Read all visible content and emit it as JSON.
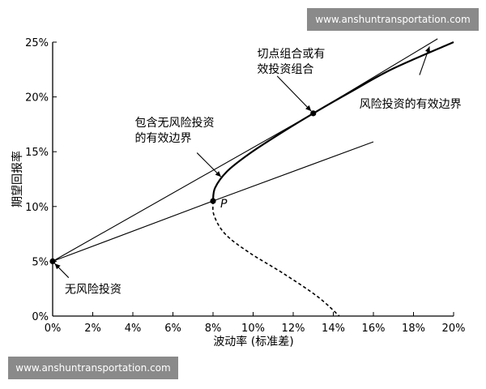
{
  "watermarks": {
    "top": "www.anshuntransportation.com",
    "bottom": "www.anshuntransportation.com"
  },
  "chart_data": {
    "type": "line",
    "xlabel": "波动率 (标准差)",
    "ylabel": "期望回报率",
    "xlim": [
      0,
      20
    ],
    "ylim": [
      0,
      25
    ],
    "x_ticks": [
      "0%",
      "2%",
      "4%",
      "6%",
      "8%",
      "10%",
      "12%",
      "14%",
      "16%",
      "18%",
      "20%"
    ],
    "y_ticks": [
      "0%",
      "5%",
      "10%",
      "15%",
      "20%",
      "25%"
    ],
    "grid": false,
    "series": [
      {
        "line": "tangent_line",
        "points": [
          [
            0,
            5
          ],
          [
            13,
            18.5
          ],
          [
            19.2,
            25.3
          ]
        ]
      },
      {
        "line": "line_through_P",
        "points": [
          [
            0,
            5
          ],
          [
            8,
            10.5
          ],
          [
            16,
            15.9
          ]
        ]
      },
      {
        "line": "efficient_frontier_solid",
        "points": [
          [
            8,
            10.5
          ],
          [
            8.1,
            11.7
          ],
          [
            8.7,
            13.2
          ],
          [
            9.8,
            14.8
          ],
          [
            11.3,
            16.6
          ],
          [
            13,
            18.5
          ],
          [
            15,
            20.6
          ],
          [
            17,
            22.6
          ],
          [
            20,
            25
          ]
        ]
      },
      {
        "line": "frontier_dashed",
        "points": [
          [
            8,
            10.5
          ],
          [
            8.05,
            9.2
          ],
          [
            8.6,
            7.5
          ],
          [
            9.8,
            5.8
          ],
          [
            11.5,
            3.9
          ],
          [
            13.2,
            1.8
          ],
          [
            14.3,
            0
          ]
        ]
      }
    ],
    "points": [
      {
        "x": 0,
        "y": 5
      },
      {
        "x": 8,
        "y": 10.5,
        "label": "P"
      },
      {
        "x": 13,
        "y": 18.5
      }
    ],
    "annotations": [
      {
        "text": "切点组合或有",
        "x": 10.2,
        "y": 23.6
      },
      {
        "text": "效投资组合",
        "x": 10.2,
        "y": 22.2
      },
      {
        "text": "风险投资的有效边界",
        "x": 15.3,
        "y": 19.0
      },
      {
        "text": "包含无风险投资",
        "x": 4.1,
        "y": 17.3
      },
      {
        "text": "的有效边界",
        "x": 4.1,
        "y": 15.9
      },
      {
        "text": "无风险投资",
        "x": 0.6,
        "y": 2.1
      }
    ],
    "arrows": [
      {
        "from": [
          11.2,
          21.9
        ],
        "to": [
          12.9,
          18.7
        ]
      },
      {
        "from": [
          18.3,
          22.0
        ],
        "to": [
          18.8,
          24.6
        ]
      },
      {
        "from": [
          7.2,
          14.9
        ],
        "to": [
          8.4,
          12.7
        ]
      },
      {
        "from": [
          0.8,
          3.5
        ],
        "to": [
          0.1,
          4.8
        ]
      }
    ]
  }
}
